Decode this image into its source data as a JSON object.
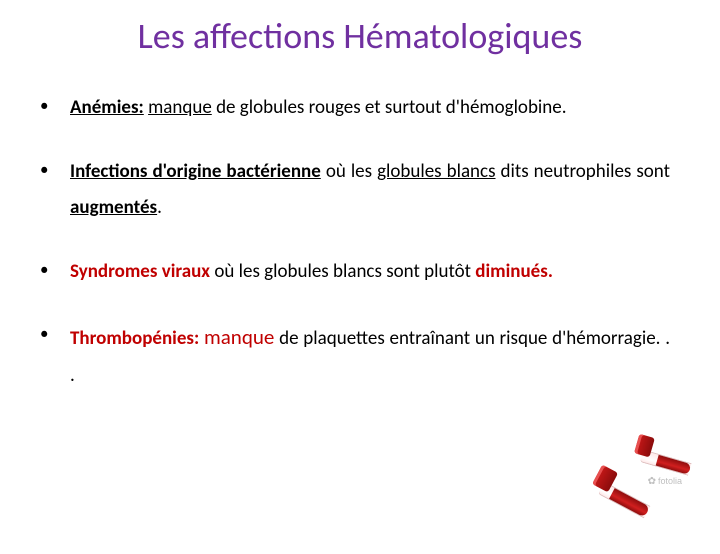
{
  "title": {
    "text": "Les affections Hématologiques",
    "color": "#7030a0"
  },
  "theme": {
    "accent": "#c00000",
    "text": "#000000",
    "background": "#ffffff",
    "bullet_color": "#000000"
  },
  "bullets": [
    {
      "segments": [
        {
          "text": "Anémies:",
          "bold": true,
          "underline": true
        },
        {
          "text": " "
        },
        {
          "text": "manque",
          "underline": true
        },
        {
          "text": " de globules rouges et surtout d'hémoglobine."
        }
      ]
    },
    {
      "segments": [
        {
          "text": "Infections d'origine bactérienne",
          "bold": true,
          "underline": true
        },
        {
          "text": " où les "
        },
        {
          "text": "globules blancs",
          "underline": true
        },
        {
          "text": " dits neutrophiles sont "
        },
        {
          "text": "augmentés",
          "bold": true,
          "underline": true
        },
        {
          "text": "."
        }
      ]
    },
    {
      "segments": [
        {
          "text": "Syndromes viraux",
          "bold": true,
          "color": "#c00000"
        },
        {
          "text": " où les globules blancs sont plutôt "
        },
        {
          "text": "diminués.",
          "bold": true,
          "color": "#c00000"
        }
      ]
    },
    {
      "segments": [
        {
          "text": "Thrombopénies:",
          "bold": true,
          "color": "#c00000"
        },
        {
          "text": " "
        },
        {
          "text": "manque",
          "color": "#c00000",
          "fontsize": 21
        },
        {
          "text": " de plaquettes entraînant un risque d'hémorragie. . ."
        }
      ]
    }
  ],
  "watermark": {
    "symbol": "✿",
    "text": "fotolia"
  },
  "illustration": {
    "type": "photo-like",
    "description": "two red-capped blood collection tubes",
    "cap_color": "#b01414",
    "blood_color": "#a51414",
    "glass_color": "#f8eaea"
  }
}
